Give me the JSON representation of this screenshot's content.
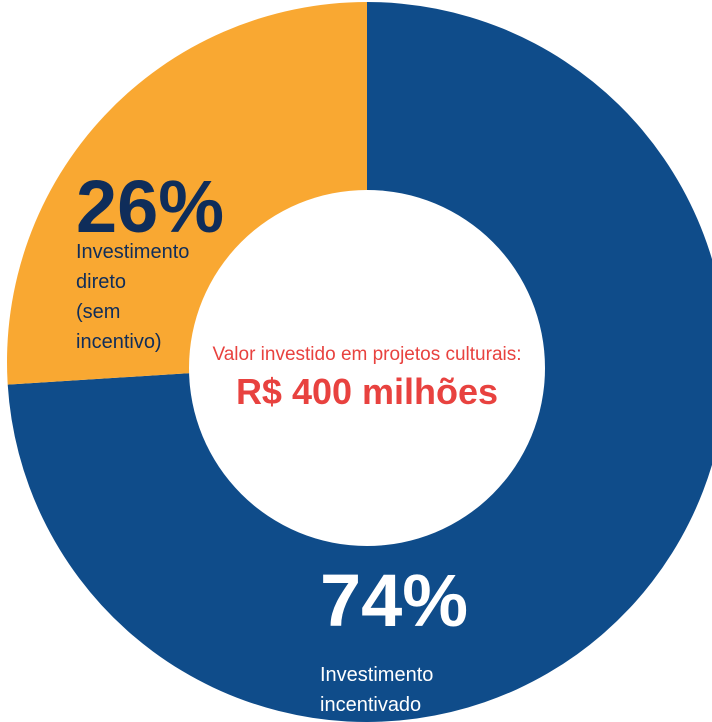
{
  "chart_data": {
    "type": "donut",
    "categories": [
      "Investimento incentivado",
      "Investimento direto (sem incentivo)"
    ],
    "values": [
      74,
      26
    ],
    "value_labels": [
      "74%",
      "26%"
    ],
    "colors": [
      "#0f4c8a",
      "#f9a832"
    ],
    "annotations": [
      "Valor investido em projetos culturais:",
      "R$ 400 milhões"
    ]
  }
}
